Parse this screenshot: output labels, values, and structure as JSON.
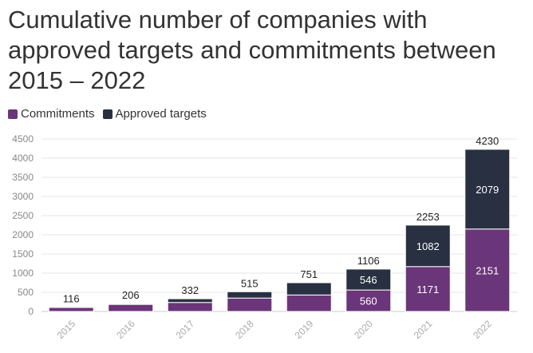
{
  "chart_data": {
    "type": "bar",
    "stacked": true,
    "title": "Cumulative number of companies with approved targets and commitments between 2015 – 2022",
    "categories": [
      "2015",
      "2016",
      "2017",
      "2018",
      "2019",
      "2020",
      "2021",
      "2022"
    ],
    "series": [
      {
        "name": "Commitments",
        "color": "#6b3579",
        "values": [
          105,
          185,
          235,
          350,
          430,
          560,
          1171,
          2151
        ],
        "labels": [
          null,
          null,
          null,
          null,
          null,
          "560",
          "1171",
          "2151"
        ]
      },
      {
        "name": "Approved targets",
        "color": "#283042",
        "values": [
          11,
          21,
          97,
          165,
          321,
          546,
          1082,
          2079
        ],
        "labels": [
          null,
          null,
          null,
          null,
          null,
          "546",
          "1082",
          "2079"
        ]
      }
    ],
    "totals": [
      "116",
      "206",
      "332",
      "515",
      "751",
      "1106",
      "2253",
      "4230"
    ],
    "yticks": [
      "0",
      "500",
      "1000",
      "1500",
      "2000",
      "2500",
      "3000",
      "3500",
      "4000",
      "4500"
    ],
    "ylim": [
      0,
      4500
    ],
    "xlabel": "",
    "ylabel": ""
  }
}
